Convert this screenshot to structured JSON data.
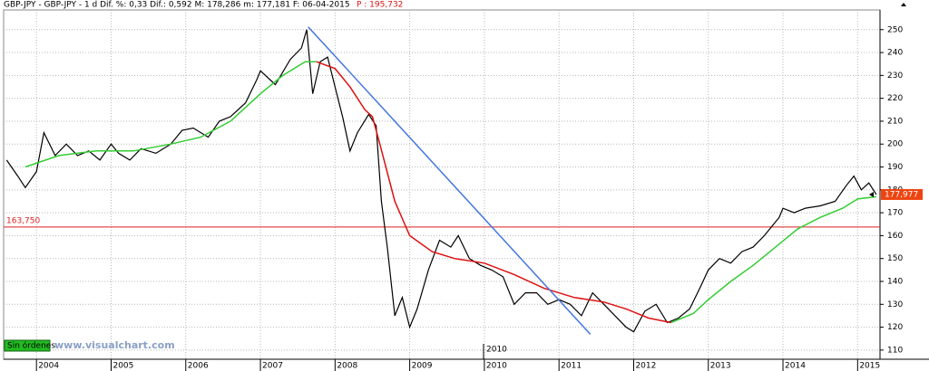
{
  "chart_data": {
    "type": "line",
    "title": "GBP-JPY - GBP-JPY -  1 d Dif. %: 0,33 Dif.: 0,592 M: 178,286 m: 177,181 F: 06-04-2015",
    "title_price": "P : 195,732",
    "orders_button": "Sin órdenes",
    "watermark": "www.visualchart.com",
    "marker_label": "2010",
    "xlim": [
      2003.56,
      2015.3
    ],
    "xticks": [
      2004,
      2005,
      2006,
      2007,
      2008,
      2009,
      2010,
      2011,
      2012,
      2013,
      2014,
      2015
    ],
    "ylim": [
      106,
      259
    ],
    "yticks": [
      110,
      120,
      130,
      140,
      150,
      160,
      170,
      180,
      190,
      200,
      210,
      220,
      230,
      240,
      250
    ],
    "grid": true,
    "series": [
      {
        "color": "#000000",
        "x": [
          2003.6,
          2003.75,
          2003.85,
          2004.0,
          2004.1,
          2004.25,
          2004.4,
          2004.55,
          2004.7,
          2004.85,
          2005.0,
          2005.1,
          2005.25,
          2005.4,
          2005.6,
          2005.8,
          2005.95,
          2006.1,
          2006.3,
          2006.45,
          2006.6,
          2006.8,
          2006.95,
          2007.0,
          2007.2,
          2007.4,
          2007.55,
          2007.62,
          2007.7,
          2007.8,
          2007.9,
          2008.0,
          2008.1,
          2008.2,
          2008.3,
          2008.45,
          2008.55,
          2008.62,
          2008.7,
          2008.8,
          2008.9,
          2009.0,
          2009.1,
          2009.25,
          2009.4,
          2009.55,
          2009.65,
          2009.8,
          2009.95,
          2010.1,
          2010.25,
          2010.4,
          2010.55,
          2010.7,
          2010.85,
          2011.0,
          2011.15,
          2011.3,
          2011.45,
          2011.6,
          2011.75,
          2011.9,
          2012.0,
          2012.15,
          2012.3,
          2012.45,
          2012.6,
          2012.75,
          2012.9,
          2013.0,
          2013.15,
          2013.3,
          2013.45,
          2013.6,
          2013.75,
          2013.95,
          2014.0,
          2014.15,
          2014.3,
          2014.5,
          2014.7,
          2014.85,
          2014.95,
          2015.05,
          2015.15,
          2015.25
        ],
        "values": [
          193,
          186,
          181,
          188,
          205,
          195,
          200,
          195,
          197,
          193,
          200,
          196,
          193,
          198,
          196,
          200,
          206,
          207,
          203,
          210,
          212,
          218,
          228,
          232,
          226,
          237,
          242,
          250,
          222,
          236,
          238,
          225,
          212,
          197,
          205,
          213,
          208,
          175,
          155,
          125,
          133,
          120,
          128,
          145,
          158,
          155,
          160,
          150,
          147,
          145,
          142,
          130,
          135,
          135,
          130,
          132,
          130,
          125,
          135,
          130,
          125,
          120,
          118,
          127,
          130,
          122,
          124,
          128,
          138,
          145,
          150,
          148,
          153,
          155,
          160,
          168,
          172,
          170,
          172,
          173,
          175,
          182,
          186,
          180,
          183,
          178
        ]
      },
      {
        "color": "#33cc33",
        "x": [
          2003.85,
          2004.3,
          2004.8,
          2005.3,
          2005.8,
          2006.2,
          2006.6,
          2007.0,
          2007.3,
          2007.6,
          2007.75,
          null,
          2012.5,
          2012.8,
          2013.0,
          2013.3,
          2013.6,
          2013.9,
          2014.2,
          2014.5,
          2014.8,
          2015.0,
          2015.25
        ],
        "values": [
          190,
          195,
          197,
          197,
          200,
          203,
          210,
          222,
          230,
          236,
          236,
          null,
          122,
          126,
          132,
          140,
          147,
          155,
          163,
          168,
          172,
          176,
          177
        ]
      },
      {
        "color": "#dd1111",
        "x": [
          2007.75,
          2008.0,
          2008.2,
          2008.4,
          2008.5,
          2008.6,
          2008.8,
          2009.0,
          2009.3,
          2009.6,
          2010.0,
          2010.4,
          2010.8,
          2011.2,
          2011.6,
          2011.9,
          2012.2,
          2012.5
        ],
        "values": [
          236,
          233,
          225,
          215,
          212,
          200,
          175,
          160,
          153,
          150,
          148,
          143,
          137,
          133,
          131,
          128,
          124,
          122
        ]
      },
      {
        "color": "#4477dd",
        "x": [
          2007.64,
          2011.42
        ],
        "values": [
          251.2,
          116.9
        ]
      }
    ],
    "level": {
      "value": 163.75,
      "label": "163,750",
      "color": "#dd2222"
    },
    "last_price": {
      "value": 177.977,
      "label": "177,977",
      "color": "#ee4411"
    }
  }
}
